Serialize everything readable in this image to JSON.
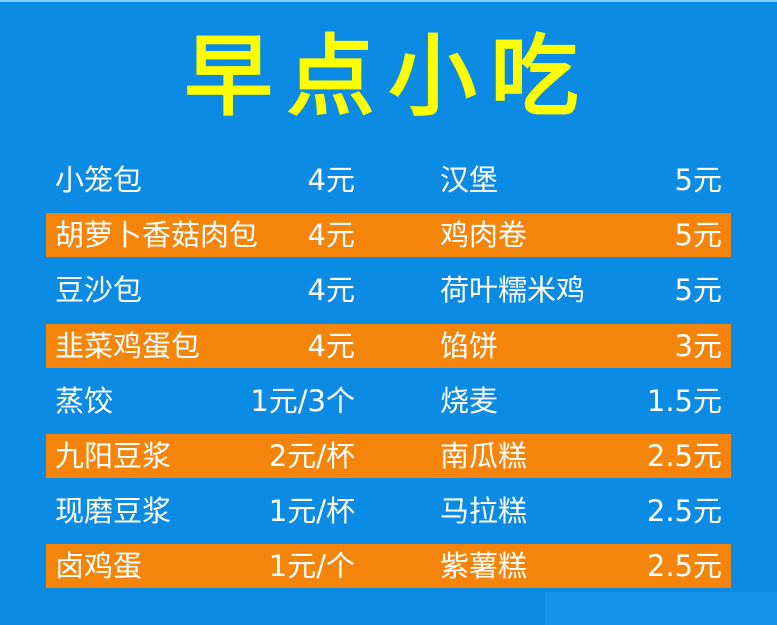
{
  "title": "早点小吃",
  "colors": {
    "background": "#0b8be3",
    "title": "#ffff00",
    "highlight_row": "#f5850a",
    "text": "#ffffff"
  },
  "rows": [
    {
      "left_name": "小笼包",
      "left_price": "4元",
      "right_name": "汉堡",
      "right_price": "5元",
      "highlight": false
    },
    {
      "left_name": "胡萝卜香菇肉包",
      "left_price": "4元",
      "right_name": "鸡肉卷",
      "right_price": "5元",
      "highlight": true
    },
    {
      "left_name": "豆沙包",
      "left_price": "4元",
      "right_name": "荷叶糯米鸡",
      "right_price": "5元",
      "highlight": false
    },
    {
      "left_name": "韭菜鸡蛋包",
      "left_price": "4元",
      "right_name": "馅饼",
      "right_price": "3元",
      "highlight": true
    },
    {
      "left_name": "蒸饺",
      "left_price": "1元/3个",
      "right_name": "烧麦",
      "right_price": "1.5元",
      "highlight": false
    },
    {
      "left_name": "九阳豆浆",
      "left_price": "2元/杯",
      "right_name": "南瓜糕",
      "right_price": "2.5元",
      "highlight": true
    },
    {
      "left_name": "现磨豆浆",
      "left_price": "1元/杯",
      "right_name": "马拉糕",
      "right_price": "2.5元",
      "highlight": false
    },
    {
      "left_name": "卤鸡蛋",
      "left_price": "1元/个",
      "right_name": "紫薯糕",
      "right_price": "2.5元",
      "highlight": true
    }
  ]
}
